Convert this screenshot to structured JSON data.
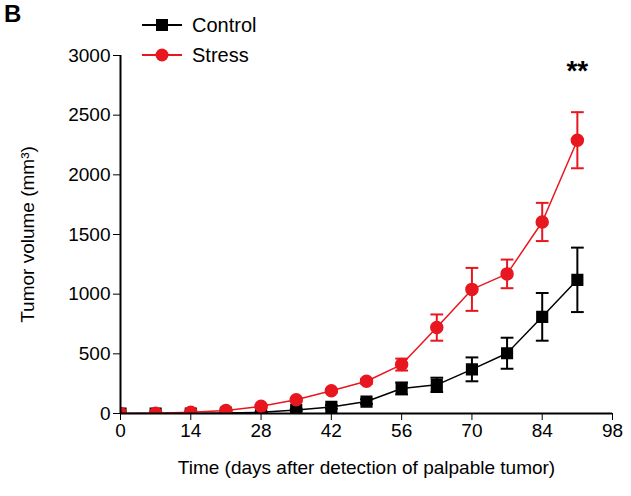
{
  "chart_data": {
    "type": "line",
    "title": "B",
    "x_label": "Time (days after detection of palpable tumor)",
    "y_label": "Tumor volume (mm³)",
    "x": [
      0,
      7,
      14,
      21,
      28,
      35,
      42,
      49,
      56,
      63,
      70,
      77,
      84,
      91
    ],
    "series": [
      {
        "name": "Control",
        "color": "#000000",
        "marker": "square",
        "values": [
          0,
          0,
          0,
          5,
          10,
          30,
          55,
          100,
          210,
          240,
          370,
          505,
          810,
          1120
        ],
        "errors": [
          0,
          0,
          0,
          0,
          5,
          10,
          15,
          20,
          50,
          60,
          100,
          130,
          200,
          270
        ]
      },
      {
        "name": "Stress",
        "color": "#e8171f",
        "marker": "circle",
        "values": [
          0,
          2,
          10,
          25,
          60,
          115,
          190,
          270,
          410,
          720,
          1040,
          1170,
          1605,
          2290
        ],
        "errors": [
          0,
          0,
          0,
          5,
          10,
          15,
          15,
          20,
          50,
          110,
          180,
          120,
          160,
          235
        ]
      }
    ],
    "annotations": [
      {
        "text": "**",
        "x": 91,
        "y": 2870
      }
    ],
    "xlim": [
      0,
      98
    ],
    "xticks": [
      0,
      14,
      28,
      42,
      56,
      70,
      84,
      98
    ],
    "ylim": [
      0,
      3000
    ],
    "yticks": [
      0,
      500,
      1000,
      1500,
      2000,
      2500,
      3000
    ],
    "grid": false,
    "legend": "top-left"
  }
}
